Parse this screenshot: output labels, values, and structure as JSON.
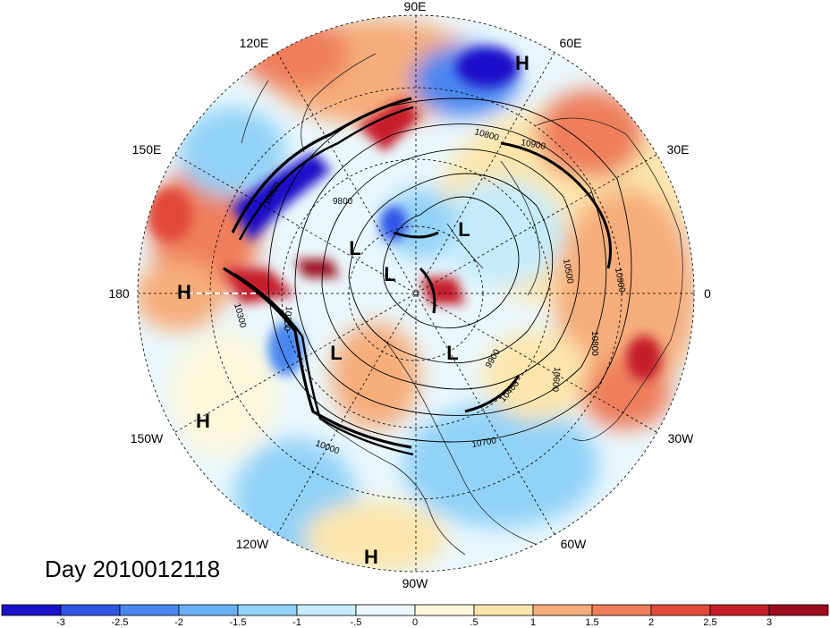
{
  "title": "Day 2010012118",
  "longitude_labels": {
    "e90": "90E",
    "e60": "60E",
    "e30": "30E",
    "zero": "0",
    "w30": "30W",
    "w60": "60W",
    "w90": "90W",
    "w120": "120W",
    "w150": "150W",
    "dateline": "180",
    "e150": "150E",
    "e120": "120E"
  },
  "pressure_centers": {
    "h_ne": "H",
    "h_180": "H",
    "h_pac": "H",
    "h_sw": "H",
    "l_a": "L",
    "l_b": "L",
    "l_c": "L",
    "l_d": "L",
    "l_e": "L"
  },
  "contour_labels": {
    "c10900_top": "10900",
    "c10800_top": "10800",
    "c9800": "9800",
    "c10500": "10500",
    "c10900_right": "10900",
    "c10800_right": "10800",
    "c10600": "10600",
    "c9900": "9900",
    "c10400": "10400",
    "c10700": "10700",
    "c10200": "10200",
    "c10000": "10000",
    "c10300": "10300",
    "c10800_left": "10800"
  },
  "colorbar": {
    "colors": [
      "#1a10c8",
      "#2f55e6",
      "#4a86ef",
      "#6aaef5",
      "#92d2f8",
      "#c4ecfb",
      "#eaf8fd",
      "#fdf8dc",
      "#fce6ad",
      "#f6ad7b",
      "#ee7e5c",
      "#e24a3a",
      "#c61e2b",
      "#9c0b1f"
    ],
    "tick_labels": [
      "-3",
      "-2.5",
      "-2",
      "-1.5",
      "-1",
      "-.5",
      "0",
      ".5",
      "1",
      "1.5",
      "2",
      "2.5",
      "3"
    ]
  }
}
